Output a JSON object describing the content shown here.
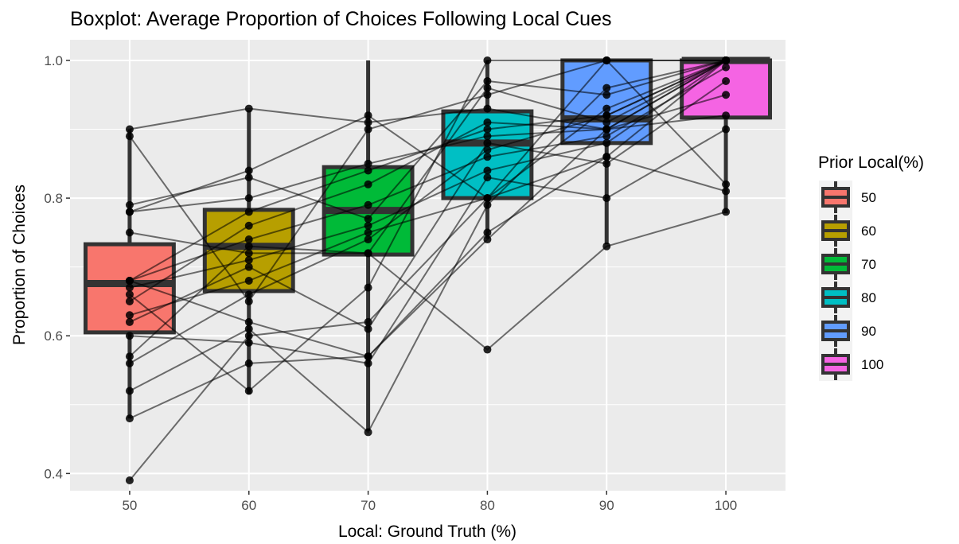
{
  "chart_data": {
    "type": "boxplot",
    "title": "Boxplot: Average Proportion of Choices Following Local Cues",
    "xlabel": "Local: Ground Truth (%)",
    "ylabel": "Proportion of Choices",
    "categories": [
      "50",
      "60",
      "70",
      "80",
      "90",
      "100"
    ],
    "yticks": [
      "0.4",
      "0.6",
      "0.8",
      "1.0"
    ],
    "ylim": [
      0.375,
      1.03
    ],
    "grid": true,
    "legend": {
      "title": "Prior Local(%)",
      "position": "right",
      "entries": [
        "50",
        "60",
        "70",
        "80",
        "90",
        "100"
      ]
    },
    "colors": [
      "#F8766D",
      "#B79F00",
      "#00BA38",
      "#00BFC4",
      "#619CFF",
      "#F564E3"
    ],
    "boxes": [
      {
        "category": "50",
        "min": 0.48,
        "q1": 0.605,
        "median": 0.676,
        "q3": 0.733,
        "max": 0.9
      },
      {
        "category": "60",
        "min": 0.515,
        "q1": 0.665,
        "median": 0.73,
        "q3": 0.783,
        "max": 0.928
      },
      {
        "category": "70",
        "min": 0.462,
        "q1": 0.718,
        "median": 0.782,
        "q3": 0.845,
        "max": 1.0
      },
      {
        "category": "80",
        "min": 0.741,
        "q1": 0.8,
        "median": 0.88,
        "q3": 0.926,
        "max": 1.0
      },
      {
        "category": "90",
        "min": 0.733,
        "q1": 0.88,
        "median": 0.915,
        "q3": 1.0,
        "max": 1.0
      },
      {
        "category": "100",
        "min": 0.778,
        "q1": 0.917,
        "median": 1.0,
        "q3": 1.0,
        "max": 1.0
      }
    ],
    "series": [
      {
        "values": [
          0.39,
          0.6,
          0.62,
          0.8,
          0.93,
          1.0
        ]
      },
      {
        "values": [
          0.48,
          0.56,
          0.57,
          0.74,
          0.9,
          0.95
        ]
      },
      {
        "values": [
          0.52,
          0.61,
          0.46,
          0.79,
          0.96,
          1.0
        ]
      },
      {
        "values": [
          0.56,
          0.66,
          0.74,
          0.87,
          0.92,
          1.0
        ]
      },
      {
        "values": [
          0.57,
          0.73,
          0.72,
          0.96,
          0.91,
          1.0
        ]
      },
      {
        "values": [
          0.6,
          0.59,
          0.56,
          0.83,
          0.8,
          0.9
        ]
      },
      {
        "values": [
          0.62,
          0.7,
          0.61,
          0.88,
          0.85,
          0.97
        ]
      },
      {
        "values": [
          0.63,
          0.68,
          0.75,
          0.8,
          1.0,
          1.0
        ]
      },
      {
        "values": [
          0.65,
          0.76,
          0.82,
          0.91,
          0.9,
          0.92
        ]
      },
      {
        "values": [
          0.67,
          0.71,
          0.76,
          0.84,
          0.88,
          1.0
        ]
      },
      {
        "values": [
          0.68,
          0.74,
          0.79,
          0.86,
          0.89,
          0.99
        ]
      },
      {
        "values": [
          0.68,
          0.78,
          0.84,
          0.9,
          0.92,
          1.0
        ]
      },
      {
        "values": [
          0.75,
          0.72,
          0.72,
          0.58,
          0.73,
          0.78
        ]
      },
      {
        "values": [
          0.78,
          0.8,
          0.85,
          0.89,
          0.9,
          1.0
        ]
      },
      {
        "values": [
          0.79,
          0.83,
          0.77,
          0.97,
          0.95,
          1.0
        ]
      },
      {
        "values": [
          0.89,
          0.65,
          0.9,
          0.95,
          1.0,
          0.82
        ]
      },
      {
        "values": [
          0.9,
          0.93,
          0.91,
          0.93,
          0.9,
          1.0
        ]
      },
      {
        "values": [
          0.78,
          0.84,
          0.92,
          0.8,
          0.86,
          0.81
        ]
      },
      {
        "values": [
          0.68,
          0.62,
          0.57,
          0.75,
          0.86,
          1.0
        ]
      },
      {
        "values": [
          0.66,
          0.52,
          0.67,
          1.0,
          1.0,
          1.0
        ]
      }
    ]
  }
}
